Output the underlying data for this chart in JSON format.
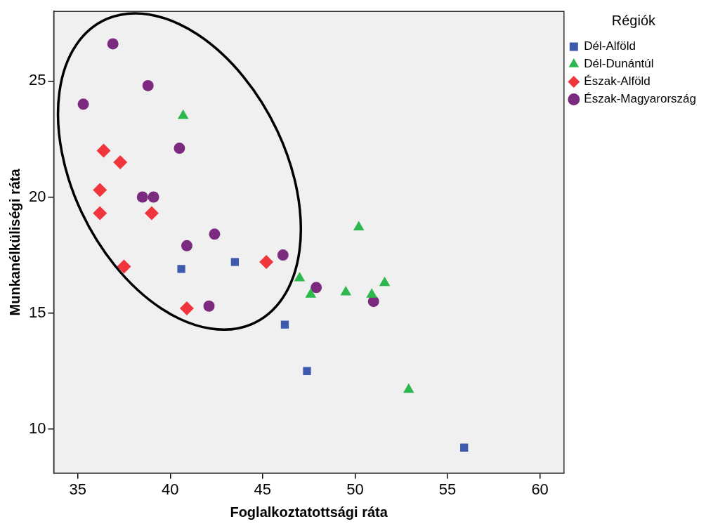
{
  "chart_data": {
    "type": "scatter",
    "xlabel": "Foglalkoztatottsági ráta",
    "ylabel": "Munkanélküliségi ráta",
    "legend_title": "Régiók",
    "legend": "right",
    "grid": false,
    "xlim": [
      33.7,
      61.3
    ],
    "xticks": [
      35,
      40,
      45,
      50,
      55,
      60
    ],
    "ylim": [
      8.1,
      28
    ],
    "yticks": [
      10,
      15,
      20,
      25
    ],
    "series": [
      {
        "name": "Dél-Alföld",
        "color": "#3d5aad",
        "marker": "square",
        "x": [
          40.6,
          43.5,
          46.2,
          47.4,
          55.9
        ],
        "values": [
          16.9,
          17.2,
          14.5,
          12.5,
          9.2
        ]
      },
      {
        "name": "Dél-Dunántúl",
        "color": "#2db84d",
        "marker": "triangle",
        "x": [
          40.7,
          50.2,
          47.0,
          47.6,
          49.5,
          50.9,
          51.6,
          52.9
        ],
        "values": [
          23.5,
          18.7,
          16.5,
          15.8,
          15.9,
          15.8,
          16.3,
          11.7
        ]
      },
      {
        "name": "Észak-Alföld",
        "color": "#f0363c",
        "marker": "diamond",
        "x": [
          36.4,
          37.3,
          36.2,
          36.2,
          39.0,
          37.5,
          45.2,
          40.9
        ],
        "values": [
          22.0,
          21.5,
          20.3,
          19.3,
          19.3,
          17.0,
          17.2,
          15.2
        ]
      },
      {
        "name": "Észak-Magyarország",
        "color": "#7b2a80",
        "marker": "circle",
        "x": [
          36.9,
          38.8,
          35.3,
          40.5,
          38.5,
          39.1,
          40.9,
          42.4,
          46.1,
          42.1,
          47.9,
          51.0
        ],
        "values": [
          26.6,
          24.8,
          24.0,
          22.1,
          20.0,
          20.0,
          17.9,
          18.4,
          17.5,
          15.3,
          16.1,
          15.5
        ]
      }
    ]
  }
}
